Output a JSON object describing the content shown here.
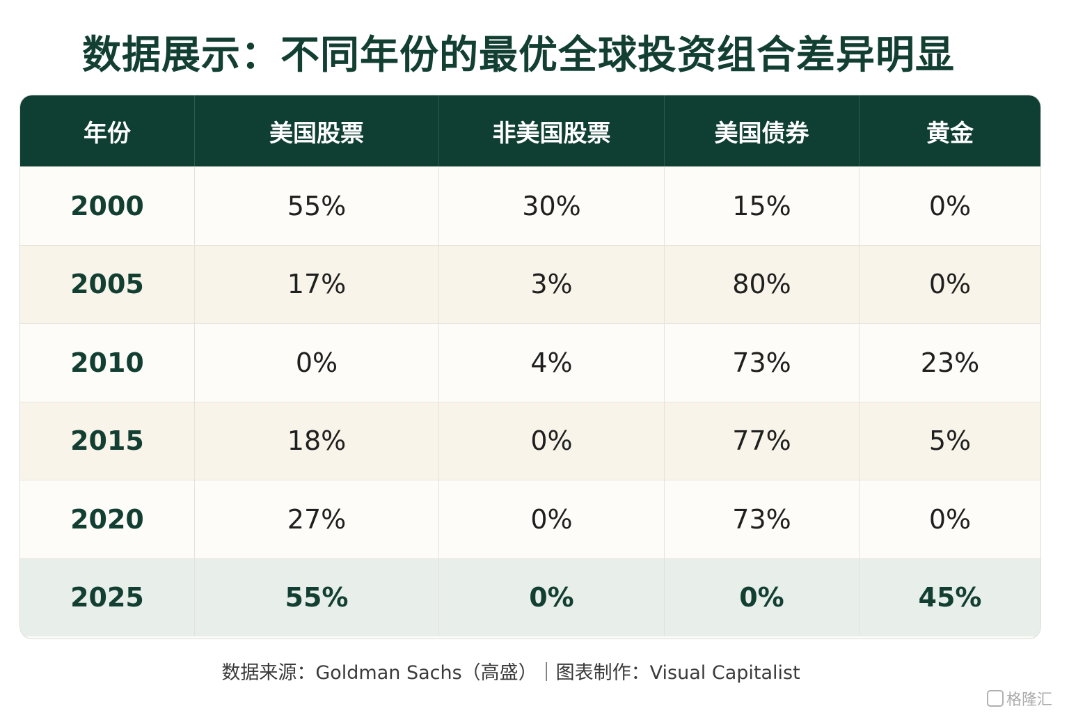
{
  "title": "数据展示：不同年份的最优全球投资组合差异明显",
  "chart_data": {
    "type": "table",
    "columns": [
      "年份",
      "美国股票",
      "非美国股票",
      "美国债券",
      "黄金"
    ],
    "rows": [
      {
        "year": "2000",
        "values": [
          "55%",
          "30%",
          "15%",
          "0%"
        ]
      },
      {
        "year": "2005",
        "values": [
          "17%",
          "3%",
          "80%",
          "0%"
        ]
      },
      {
        "year": "2010",
        "values": [
          "0%",
          "4%",
          "73%",
          "23%"
        ]
      },
      {
        "year": "2015",
        "values": [
          "18%",
          "0%",
          "77%",
          "5%"
        ]
      },
      {
        "year": "2020",
        "values": [
          "27%",
          "0%",
          "73%",
          "0%"
        ]
      },
      {
        "year": "2025",
        "values": [
          "55%",
          "0%",
          "0%",
          "45%"
        ]
      }
    ],
    "highlight_row": "2025"
  },
  "footer": "数据来源：Goldman Sachs（高盛）｜图表制作：Visual Capitalist",
  "watermark": "格隆汇",
  "colors": {
    "header_bg": "#0f3e33",
    "title": "#123f32",
    "row_odd": "#fdfcf8",
    "row_even": "#f8f4ea",
    "row_highlight": "#e8eeea"
  }
}
